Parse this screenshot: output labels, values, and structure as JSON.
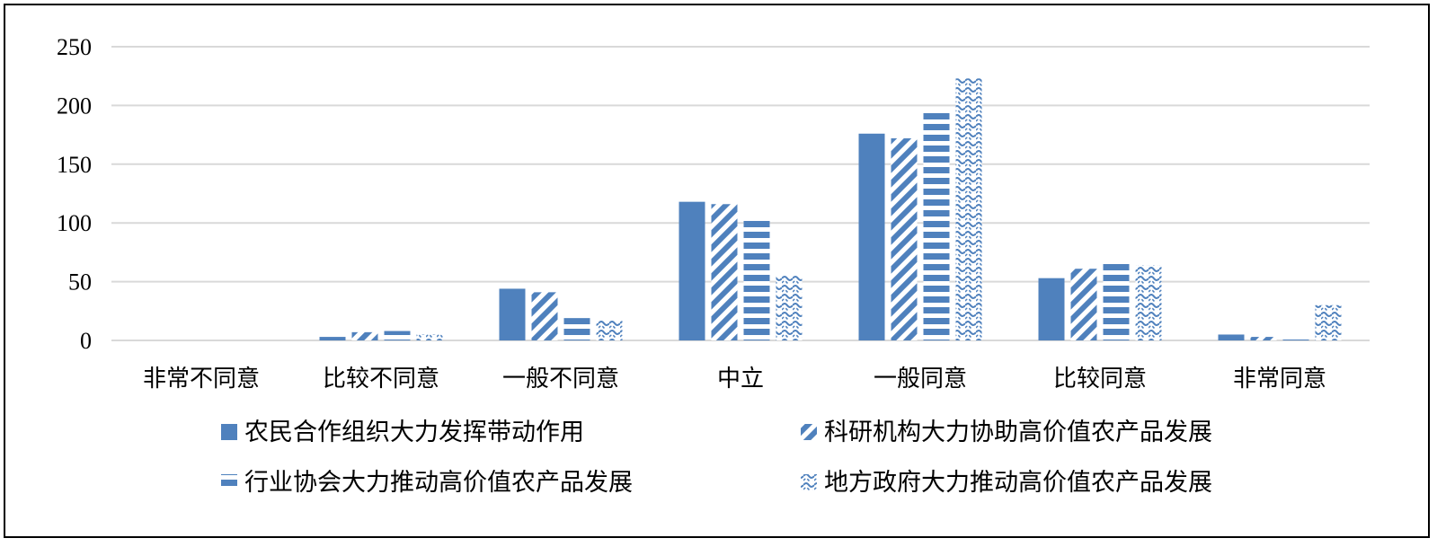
{
  "chart_data": {
    "type": "bar",
    "categories": [
      "非常不同意",
      "比较不同意",
      "一般不同意",
      "中立",
      "一般同意",
      "比较同意",
      "非常同意"
    ],
    "series": [
      {
        "name": "农民合作组织大力发挥带动作用",
        "values": [
          0,
          3,
          44,
          118,
          176,
          53,
          5
        ],
        "color": "#4F81BD",
        "pattern": "solid"
      },
      {
        "name": "科研机构大力协助高价值农产品发展",
        "values": [
          0,
          7,
          41,
          116,
          172,
          61,
          3
        ],
        "color": "#4F81BD",
        "pattern": "diagonal-stripes"
      },
      {
        "name": "行业协会大力推动高价值农产品发展",
        "values": [
          0,
          8,
          19,
          102,
          194,
          66,
          2
        ],
        "color": "#4F81BD",
        "pattern": "horizontal-stripes"
      },
      {
        "name": "地方政府大力推动高价值农产品发展",
        "values": [
          0,
          5,
          17,
          55,
          223,
          64,
          30
        ],
        "color": "#4F81BD",
        "pattern": "wave"
      }
    ],
    "yticks": [
      "0",
      "50",
      "100",
      "150",
      "200",
      "250"
    ],
    "ylim": [
      0,
      250
    ],
    "grid": true,
    "legend_position": "bottom"
  }
}
